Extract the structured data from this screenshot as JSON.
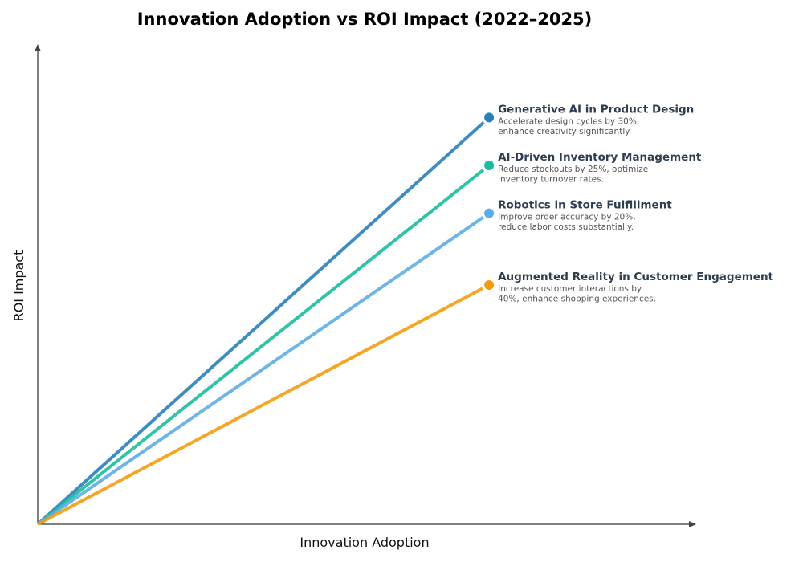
{
  "chart_data": {
    "type": "line",
    "title": "Innovation Adoption vs ROI Impact (2022–2025)",
    "xlabel": "Innovation Adoption",
    "ylabel": "ROI Impact",
    "xlim": [
      0,
      1
    ],
    "ylim": [
      0,
      1
    ],
    "grid": false,
    "ticks": false,
    "series": [
      {
        "name": "Generative AI in Product Design",
        "description": [
          "Accelerate design cycles by 30%,",
          "enhance creativity significantly."
        ],
        "x": [
          0,
          0.7
        ],
        "y": [
          0,
          0.85
        ],
        "color": "#2a7fba"
      },
      {
        "name": "AI-Driven Inventory Management",
        "description": [
          "Reduce stockouts by 25%, optimize",
          "inventory turnover rates."
        ],
        "x": [
          0,
          0.7
        ],
        "y": [
          0,
          0.75
        ],
        "color": "#1abc9c"
      },
      {
        "name": "Robotics in Store Fulfillment",
        "description": [
          "Improve order accuracy by 20%,",
          "reduce labor costs substantially."
        ],
        "x": [
          0,
          0.7
        ],
        "y": [
          0,
          0.65
        ],
        "color": "#5dade2"
      },
      {
        "name": "Augmented Reality in Customer Engagement",
        "description": [
          "Increase customer interactions by",
          "40%, enhance shopping experiences."
        ],
        "x": [
          0,
          0.7
        ],
        "y": [
          0,
          0.5
        ],
        "color": "#f39c12"
      }
    ]
  }
}
